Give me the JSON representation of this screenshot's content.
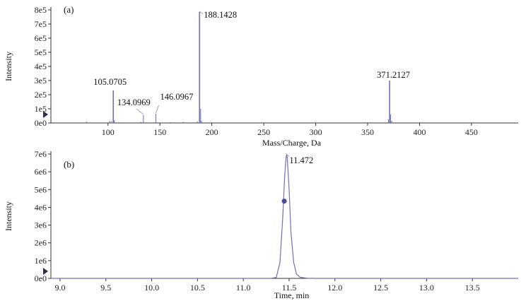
{
  "colors": {
    "trace": "#6f6fb4",
    "axis": "#333333",
    "marker": "#4a4a9a",
    "annot": "#8a8aa8"
  },
  "chart_data": [
    {
      "id": "a",
      "type": "line",
      "panel_label": "(a)",
      "xlabel": "Mass/Charge, Da",
      "ylabel": "Intensity",
      "xlim": [
        45,
        495
      ],
      "ylim": [
        0,
        800000
      ],
      "xticks": [
        100,
        150,
        200,
        250,
        300,
        350,
        400,
        450
      ],
      "xtick_labels": [
        "100",
        "150",
        "200",
        "250",
        "300",
        "350",
        "400",
        "450"
      ],
      "yticks": [
        0,
        100000,
        200000,
        300000,
        400000,
        500000,
        600000,
        700000,
        800000
      ],
      "ytick_labels": [
        "0e0",
        "1e5",
        "2e5",
        "3e5",
        "4e5",
        "5e5",
        "6e5",
        "7e5",
        "8e5"
      ],
      "peaks": [
        {
          "x": 79.5,
          "y": 9000
        },
        {
          "x": 101.5,
          "y": 15000
        },
        {
          "x": 103.0,
          "y": 12000
        },
        {
          "x": 105.0705,
          "y": 230000,
          "label": "105.0705"
        },
        {
          "x": 106.1,
          "y": 20000
        },
        {
          "x": 131.5,
          "y": 8000
        },
        {
          "x": 134.0969,
          "y": 55000,
          "label": "134.0969"
        },
        {
          "x": 146.0967,
          "y": 65000,
          "label": "146.0967"
        },
        {
          "x": 160.0,
          "y": 6000
        },
        {
          "x": 172.5,
          "y": 8000
        },
        {
          "x": 186.0,
          "y": 12000
        },
        {
          "x": 188.1428,
          "y": 785000,
          "label": "188.1428"
        },
        {
          "x": 189.2,
          "y": 100000
        },
        {
          "x": 190.1,
          "y": 15000
        },
        {
          "x": 370.0,
          "y": 25000
        },
        {
          "x": 371.2127,
          "y": 300000,
          "label": "371.2127"
        },
        {
          "x": 372.2,
          "y": 60000
        },
        {
          "x": 373.2,
          "y": 15000
        }
      ]
    },
    {
      "id": "b",
      "type": "line",
      "panel_label": "(b)",
      "xlabel": "Time, min",
      "ylabel": "Intensity",
      "xlim": [
        8.9,
        14.0
      ],
      "ylim": [
        0,
        7000000
      ],
      "xticks": [
        9.0,
        9.5,
        10.0,
        10.5,
        11.0,
        11.5,
        12.0,
        12.5,
        13.0,
        13.5
      ],
      "xtick_labels": [
        "9.0",
        "9.5",
        "10.0",
        "10.5",
        "11.0",
        "11.5",
        "12.0",
        "12.5",
        "13.0",
        "13.5"
      ],
      "yticks": [
        0,
        1000000,
        2000000,
        3000000,
        4000000,
        5000000,
        6000000,
        7000000
      ],
      "ytick_labels": [
        "0e0",
        "1e6",
        "2e6",
        "3e6",
        "4e6",
        "5e6",
        "6e6",
        "7e6"
      ],
      "points": [
        [
          8.9,
          0
        ],
        [
          11.3,
          0
        ],
        [
          11.36,
          50000
        ],
        [
          11.4,
          900000
        ],
        [
          11.43,
          3400000
        ],
        [
          11.45,
          5600000
        ],
        [
          11.465,
          6700000
        ],
        [
          11.472,
          6960000
        ],
        [
          11.48,
          6800000
        ],
        [
          11.5,
          5000000
        ],
        [
          11.52,
          2600000
        ],
        [
          11.55,
          900000
        ],
        [
          11.58,
          250000
        ],
        [
          11.62,
          60000
        ],
        [
          11.7,
          10000
        ],
        [
          11.8,
          0
        ],
        [
          14.0,
          0
        ]
      ],
      "marker": {
        "x": 11.447,
        "y": 4350000
      },
      "peak_label": {
        "x": 11.472,
        "y": 6960000,
        "text": "11.472"
      }
    }
  ]
}
